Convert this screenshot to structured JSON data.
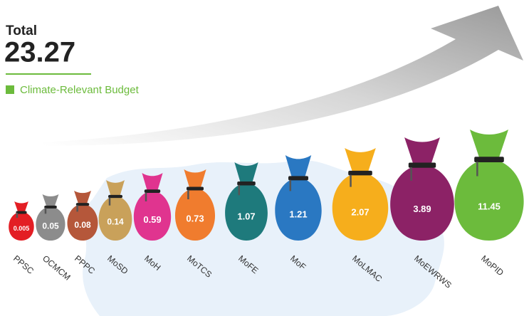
{
  "chart_data": {
    "type": "pictograph",
    "total_label": "Total",
    "total_value": "23.27",
    "legend": [
      {
        "name": "Climate-Relevant Budget",
        "color": "#6cbb3c"
      }
    ],
    "categories": [
      "PPSC",
      "OCMCM",
      "PPPC",
      "MoSD",
      "MoH",
      "MoTCS",
      "MoFE",
      "MoF",
      "MoLMAC",
      "MoEWRWS",
      "MoPID"
    ],
    "values": [
      0.005,
      0.05,
      0.08,
      0.14,
      0.59,
      0.73,
      1.07,
      1.21,
      2.07,
      3.89,
      11.45
    ],
    "colors": [
      "#e31e24",
      "#8c8c8c",
      "#b5573a",
      "#c9a15a",
      "#e0348f",
      "#f07c2e",
      "#1e7a7c",
      "#2a78c2",
      "#f6ae1c",
      "#8c2266",
      "#6cbb3c"
    ]
  }
}
